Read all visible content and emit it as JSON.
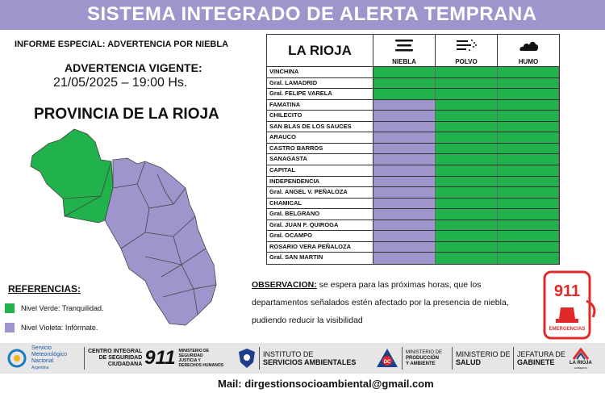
{
  "header": {
    "title": "SISTEMA INTEGRADO DE ALERTA TEMPRANA"
  },
  "report": {
    "title": "INFORME ESPECIAL: ADVERTENCIA POR NIEBLA",
    "warning_label": "ADVERTENCIA VIGENTE:",
    "warning_datetime": "21/05/2025 – 19:00 Hs.",
    "province_title": "PROVINCIA DE LA RIOJA"
  },
  "references": {
    "title": "REFERENCIAS:",
    "items": [
      {
        "label": "Nivel Verde: Tranquilidad.",
        "color": "#22b24c"
      },
      {
        "label": "Nivel Violeta: Infórmate.",
        "color": "#9f95cd"
      }
    ]
  },
  "table": {
    "region": "LA RIOJA",
    "columns": [
      {
        "label": "NIEBLA",
        "icon": "fog-icon"
      },
      {
        "label": "POLVO",
        "icon": "dust-wind-icon"
      },
      {
        "label": "HUMO",
        "icon": "smoke-icon"
      }
    ],
    "rows": [
      {
        "name": "VINCHINA",
        "levels": [
          "green",
          "green",
          "green"
        ]
      },
      {
        "name": "Gral. LAMADRID",
        "levels": [
          "green",
          "green",
          "green"
        ]
      },
      {
        "name": "Gral. FELIPE VARELA",
        "levels": [
          "green",
          "green",
          "green"
        ]
      },
      {
        "name": "FAMATINA",
        "levels": [
          "violet",
          "green",
          "green"
        ]
      },
      {
        "name": "CHILECITO",
        "levels": [
          "violet",
          "green",
          "green"
        ]
      },
      {
        "name": "SAN BLAS DE LOS SAUCES",
        "levels": [
          "violet",
          "green",
          "green"
        ]
      },
      {
        "name": "ARAUCO",
        "levels": [
          "violet",
          "green",
          "green"
        ]
      },
      {
        "name": "CASTRO BARROS",
        "levels": [
          "violet",
          "green",
          "green"
        ]
      },
      {
        "name": "SANAGASTA",
        "levels": [
          "violet",
          "green",
          "green"
        ]
      },
      {
        "name": "CAPITAL",
        "levels": [
          "violet",
          "green",
          "green"
        ]
      },
      {
        "name": "INDEPENDENCIA",
        "levels": [
          "violet",
          "green",
          "green"
        ]
      },
      {
        "name": "Gral. ANGEL V. PEÑALOZA",
        "levels": [
          "violet",
          "green",
          "green"
        ]
      },
      {
        "name": "CHAMICAL",
        "levels": [
          "violet",
          "green",
          "green"
        ]
      },
      {
        "name": "Gral. BELGRANO",
        "levels": [
          "violet",
          "green",
          "green"
        ]
      },
      {
        "name": "Gral. JUAN F. QUIROGA",
        "levels": [
          "violet",
          "green",
          "green"
        ]
      },
      {
        "name": "Gral. OCAMPO",
        "levels": [
          "violet",
          "green",
          "green"
        ]
      },
      {
        "name": "ROSARIO VERA PEÑALOZA",
        "levels": [
          "violet",
          "green",
          "green"
        ]
      },
      {
        "name": "Gral. SAN MARTIN",
        "levels": [
          "violet",
          "green",
          "green"
        ]
      }
    ]
  },
  "colors": {
    "green": "#22b24c",
    "violet": "#9f95cd",
    "banner": "#9f95cd"
  },
  "observation": {
    "label": "OBSERVACION:",
    "text": "se espera para las próximas horas, que los departamentos señalados estén afectado por la presencia de niebla, pudiendo reducir la visibilidad"
  },
  "phone": {
    "number": "911",
    "caption": "EMERGENCIAS"
  },
  "footer": {
    "smn": [
      "Servicio",
      "Meteorológico",
      "Nacional",
      "Argentina"
    ],
    "centro": [
      "CENTRO INTEGRAL",
      "DE SEGURIDAD",
      "CIUDADANA"
    ],
    "centro_number": "911",
    "min_seguridad": [
      "MINISTERIO DE",
      "SEGURIDAD",
      "JUSTICIA Y",
      "DERECHOS HUMANOS"
    ],
    "instituto": [
      "INSTITUTO DE",
      "SERVICIOS AMBIENTALES"
    ],
    "dc": "DC",
    "min_produccion": [
      "MINISTERIO DE",
      "PRODUCCIÓN",
      "Y AMBIENTE"
    ],
    "min_salud": [
      "MINISTERIO DE",
      "SALUD"
    ],
    "jefatura": [
      "JEFATURA DE",
      "GABINETE"
    ],
    "larioja": [
      "LA RIOJA",
      "GOBIERNO"
    ]
  },
  "mail": "Mail: dirgestionsocioambiental@gmail.com"
}
